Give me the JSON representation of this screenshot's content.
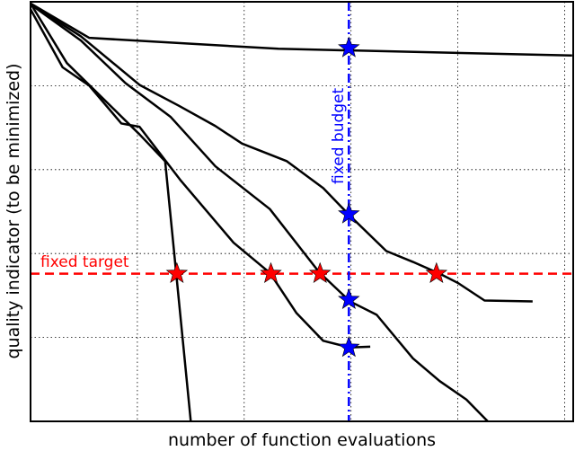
{
  "chart_data": {
    "type": "line",
    "title": "",
    "xlabel": "number of function evaluations",
    "ylabel": "quality indicator (to be minimized)",
    "xlim": [
      0,
      5.08
    ],
    "ylim": [
      0,
      5
    ],
    "grid": true,
    "xticks": [
      1,
      2,
      3,
      4,
      5
    ],
    "yticks": [
      1,
      2,
      3,
      4
    ],
    "line_color": "#000000",
    "series": [
      {
        "points": [
          [
            0,
            4.98
          ],
          [
            0.55,
            4.57
          ],
          [
            2.32,
            4.44
          ],
          [
            5.07,
            4.36
          ]
        ]
      },
      {
        "points": [
          [
            0,
            4.98
          ],
          [
            0.34,
            4.27
          ],
          [
            1.02,
            3.42
          ],
          [
            1.26,
            3.1
          ],
          [
            1.36,
            1.81
          ],
          [
            1.5,
            0
          ]
        ]
      },
      {
        "points": [
          [
            0,
            4.91
          ],
          [
            0.3,
            4.22
          ],
          [
            0.55,
            4.0
          ],
          [
            0.85,
            3.55
          ],
          [
            1.02,
            3.51
          ],
          [
            1.4,
            2.88
          ],
          [
            1.9,
            2.13
          ],
          [
            2.24,
            1.77
          ],
          [
            2.49,
            1.29
          ],
          [
            2.74,
            0.96
          ],
          [
            2.99,
            0.88
          ],
          [
            3.18,
            0.89
          ]
        ]
      },
      {
        "points": [
          [
            0,
            4.97
          ],
          [
            0.47,
            4.54
          ],
          [
            0.89,
            4.03
          ],
          [
            1.31,
            3.63
          ],
          [
            1.73,
            3.04
          ],
          [
            2.24,
            2.53
          ],
          [
            2.7,
            1.78
          ],
          [
            2.99,
            1.43
          ],
          [
            3.24,
            1.27
          ],
          [
            3.58,
            0.75
          ],
          [
            3.83,
            0.48
          ],
          [
            4.08,
            0.26
          ],
          [
            4.28,
            0
          ]
        ]
      },
      {
        "points": [
          [
            0,
            4.97
          ],
          [
            0.47,
            4.59
          ],
          [
            1.02,
            4.01
          ],
          [
            1.39,
            3.76
          ],
          [
            1.73,
            3.52
          ],
          [
            1.98,
            3.31
          ],
          [
            2.4,
            3.1
          ],
          [
            2.74,
            2.78
          ],
          [
            2.99,
            2.45
          ],
          [
            3.33,
            2.03
          ],
          [
            3.58,
            1.9
          ],
          [
            3.83,
            1.76
          ],
          [
            4.0,
            1.65
          ],
          [
            4.25,
            1.44
          ],
          [
            4.7,
            1.43
          ]
        ]
      }
    ],
    "fixed_target": {
      "label": "fixed target",
      "y": 1.76,
      "color": "#ff0000",
      "hits_x": [
        1.37,
        2.25,
        2.71,
        3.8
      ]
    },
    "fixed_budget": {
      "label": "fixed budget",
      "x": 2.98,
      "color": "#0000ff",
      "hits_y": [
        4.45,
        2.47,
        1.45,
        0.88
      ]
    }
  }
}
